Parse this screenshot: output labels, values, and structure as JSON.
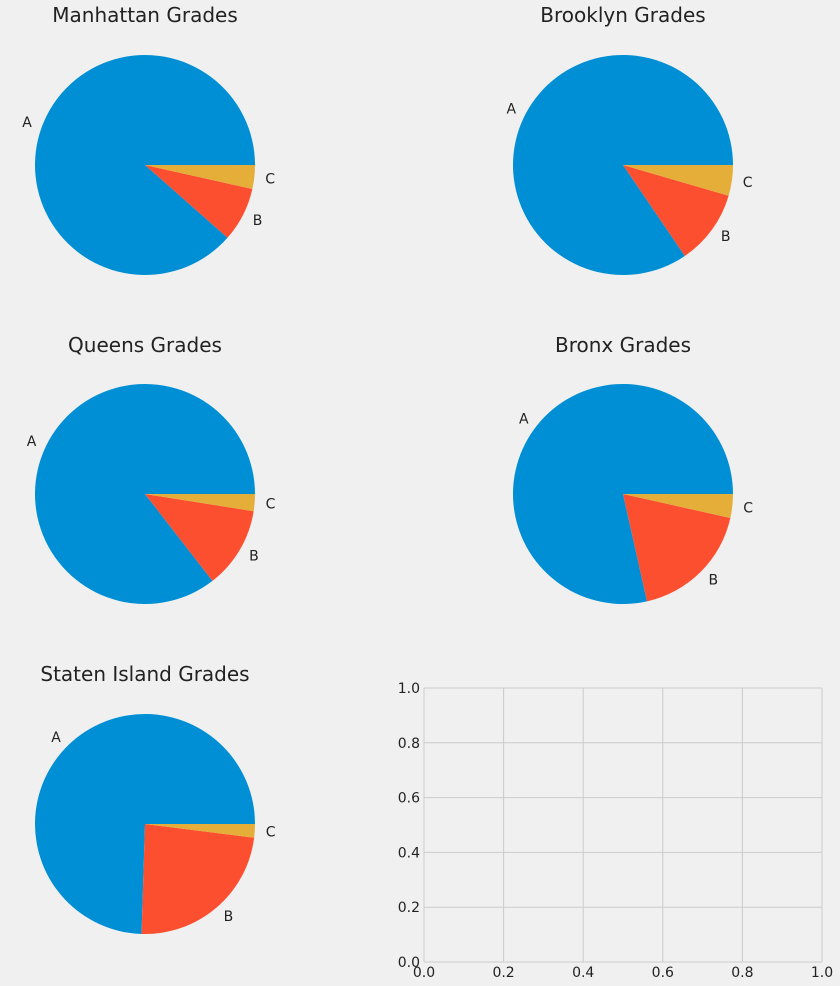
{
  "figure": {
    "background": "#f0f0f0"
  },
  "colors": {
    "A": "#008fd5",
    "B": "#fc4f30",
    "C": "#e5ae38"
  },
  "chart_data": [
    {
      "type": "pie",
      "title": "Manhattan Grades",
      "labels": [
        "A",
        "B",
        "C"
      ],
      "values": [
        88.5,
        8.0,
        3.5
      ]
    },
    {
      "type": "pie",
      "title": "Brooklyn Grades",
      "labels": [
        "A",
        "B",
        "C"
      ],
      "values": [
        84.5,
        11.0,
        4.5
      ]
    },
    {
      "type": "pie",
      "title": "Queens Grades",
      "labels": [
        "A",
        "B",
        "C"
      ],
      "values": [
        85.5,
        12.0,
        2.5
      ]
    },
    {
      "type": "pie",
      "title": "Bronx Grades",
      "labels": [
        "A",
        "B",
        "C"
      ],
      "values": [
        78.5,
        18.0,
        3.5
      ]
    },
    {
      "type": "pie",
      "title": "Staten Island Grades",
      "labels": [
        "A",
        "B",
        "C"
      ],
      "values": [
        74.5,
        23.5,
        2.0
      ]
    },
    {
      "type": "scatter",
      "title": "",
      "xlabel": "",
      "ylabel": "",
      "xlim": [
        0.0,
        1.0
      ],
      "ylim": [
        0.0,
        1.0
      ],
      "xticks": [
        "0.0",
        "0.2",
        "0.4",
        "0.6",
        "0.8",
        "1.0"
      ],
      "yticks": [
        "0.0",
        "0.2",
        "0.4",
        "0.6",
        "0.8",
        "1.0"
      ],
      "grid": true,
      "series": []
    }
  ]
}
